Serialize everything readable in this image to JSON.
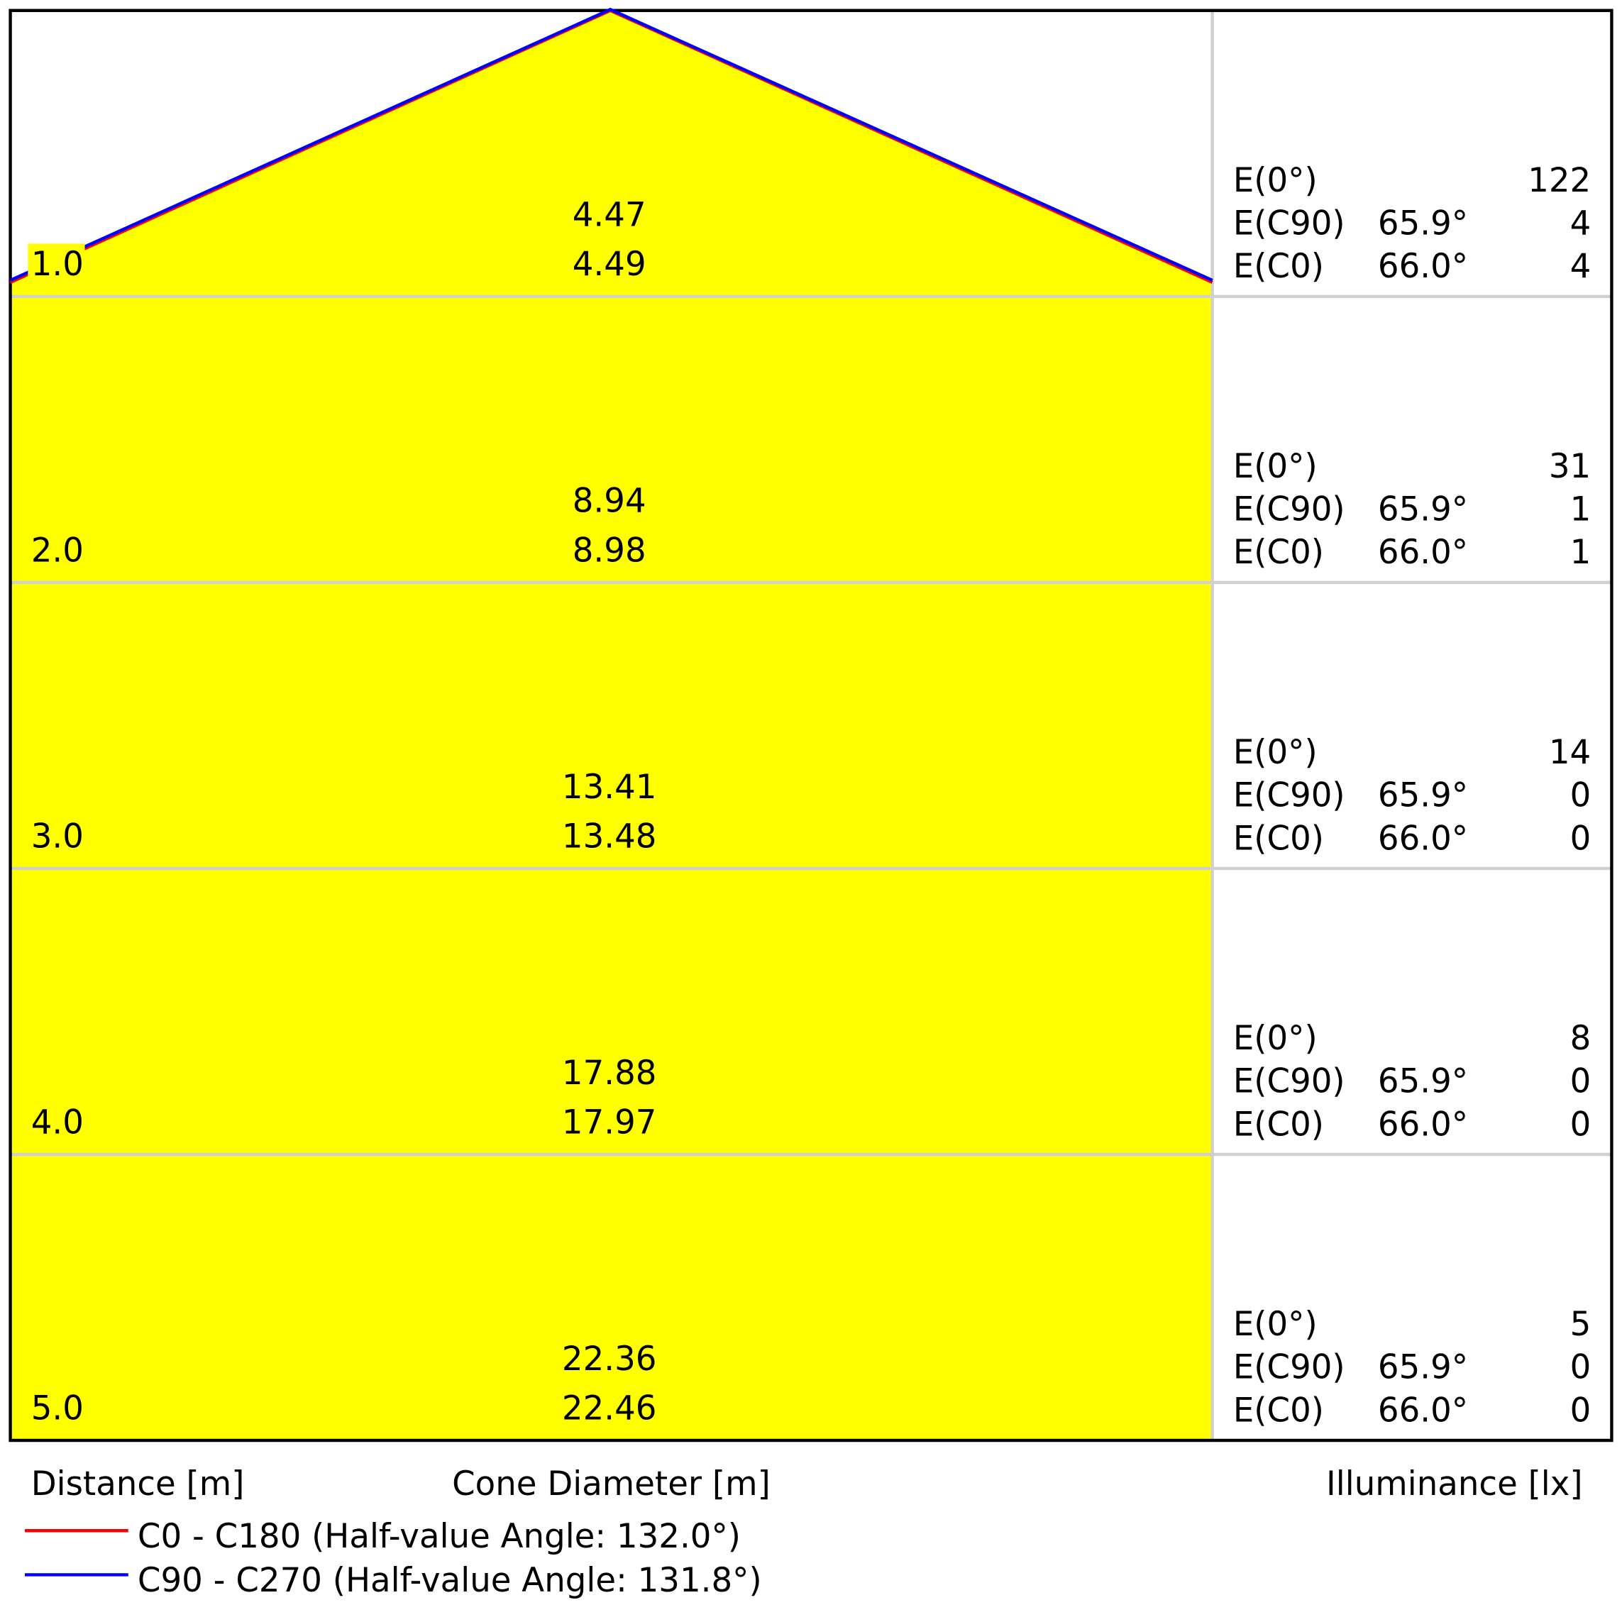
{
  "chart_data": {
    "type": "table",
    "title": "",
    "xlabel": "Cone Diameter [m]",
    "ylabel": "Distance [m]",
    "illuminance_label": "Illuminance [lx]",
    "distances": [
      "1.0",
      "2.0",
      "3.0",
      "4.0",
      "5.0"
    ],
    "cone_diameter_c90": [
      "4.47",
      "8.94",
      "13.41",
      "17.88",
      "22.36"
    ],
    "cone_diameter_c0": [
      "4.49",
      "8.98",
      "13.48",
      "17.97",
      "22.46"
    ],
    "rows": [
      {
        "e0": "122",
        "ec90": "4",
        "ec0": "4"
      },
      {
        "e0": "31",
        "ec90": "1",
        "ec0": "1"
      },
      {
        "e0": "14",
        "ec90": "0",
        "ec0": "0"
      },
      {
        "e0": "8",
        "ec90": "0",
        "ec0": "0"
      },
      {
        "e0": "5",
        "ec90": "0",
        "ec0": "0"
      }
    ],
    "row_labels": {
      "e0": "E(0°)",
      "ec90": "E(C90)",
      "ec0": "E(C0)"
    },
    "angle_c90": "65.9°",
    "angle_c0": "66.0°",
    "series": [
      {
        "name": "C0 - C180 (Half-value Angle: 132.0°)",
        "color": "#ff0000",
        "half_value_angle": 132.0
      },
      {
        "name": "C90 - C270 (Half-value Angle: 131.8°)",
        "color": "#0000ff",
        "half_value_angle": 131.8
      }
    ],
    "cone_fill_color": "#ffff00"
  }
}
